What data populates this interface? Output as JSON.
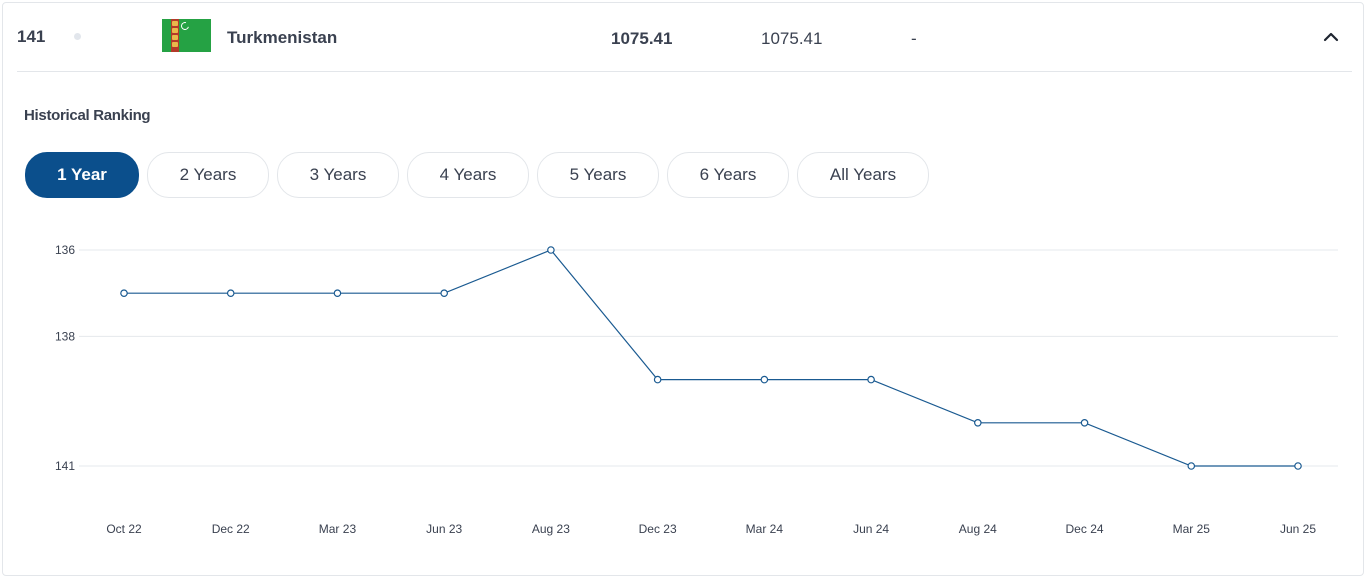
{
  "row": {
    "rank": "141",
    "country": "Turkmenistan",
    "points": "1075.41",
    "previous_points": "1075.41",
    "change": "-",
    "flag_icon": "turkmenistan-flag-icon",
    "collapse_icon": "chevron-up-icon"
  },
  "section_title": "Historical Ranking",
  "range_tabs": [
    {
      "label": "1 Year",
      "active": true
    },
    {
      "label": "2 Years",
      "active": false
    },
    {
      "label": "3 Years",
      "active": false
    },
    {
      "label": "4 Years",
      "active": false
    },
    {
      "label": "5 Years",
      "active": false
    },
    {
      "label": "6 Years",
      "active": false
    },
    {
      "label": "All Years",
      "active": false
    }
  ],
  "colors": {
    "accent": "#0b4f8c",
    "line": "#1a5a91",
    "grid": "#e5e8ec",
    "text": "#3a4150"
  },
  "chart_data": {
    "type": "line",
    "title": "",
    "xlabel": "",
    "ylabel": "",
    "y_inverted": true,
    "ylim": [
      136,
      141
    ],
    "y_ticks": [
      "136",
      "138",
      "141"
    ],
    "grid": true,
    "categories": [
      "Oct 22",
      "Dec 22",
      "Mar 23",
      "Jun 23",
      "Aug 23",
      "Dec 23",
      "Mar 24",
      "Jun 24",
      "Aug 24",
      "Dec 24",
      "Mar 25",
      "Jun 25"
    ],
    "series": [
      {
        "values": [
          137,
          137,
          137,
          137,
          136,
          139,
          139,
          139,
          140,
          140,
          141,
          141
        ]
      }
    ]
  }
}
